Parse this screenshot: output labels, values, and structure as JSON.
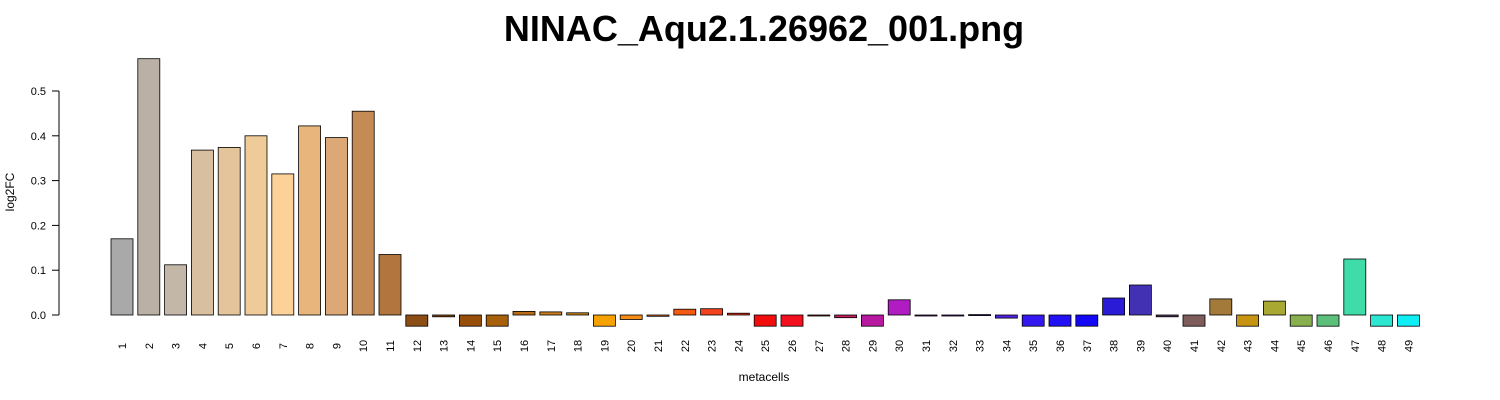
{
  "chart_data": {
    "type": "bar",
    "title": "NINAC_Aqu2.1.26962_001.png",
    "xlabel": "metacells",
    "ylabel": "log2FC",
    "ylim": [
      -0.03,
      0.58
    ],
    "yticks": [
      0.0,
      0.1,
      0.2,
      0.3,
      0.4,
      0.5
    ],
    "ytick_labels": [
      "0.0",
      "0.1",
      "0.2",
      "0.3",
      "0.4",
      "0.5"
    ],
    "grid": false,
    "legend": "none",
    "categories": [
      "1",
      "2",
      "3",
      "4",
      "5",
      "6",
      "7",
      "8",
      "9",
      "10",
      "11",
      "12",
      "13",
      "14",
      "15",
      "16",
      "17",
      "18",
      "19",
      "20",
      "21",
      "22",
      "23",
      "24",
      "25",
      "26",
      "27",
      "28",
      "29",
      "30",
      "31",
      "32",
      "33",
      "34",
      "35",
      "36",
      "37",
      "38",
      "39",
      "40",
      "41",
      "42",
      "43",
      "44",
      "45",
      "46",
      "47",
      "48",
      "49"
    ],
    "values": [
      0.17,
      0.572,
      0.112,
      0.368,
      0.374,
      0.4,
      0.315,
      0.422,
      0.396,
      0.455,
      0.135,
      -0.025,
      -0.004,
      -0.025,
      -0.025,
      0.008,
      0.007,
      0.005,
      -0.025,
      -0.01,
      -0.003,
      0.013,
      0.014,
      0.004,
      -0.025,
      -0.025,
      -0.002,
      -0.006,
      -0.025,
      0.034,
      -0.001,
      0.0,
      0.001,
      -0.007,
      -0.025,
      -0.025,
      -0.025,
      0.038,
      0.067,
      -0.004,
      -0.025,
      0.036,
      -0.025,
      0.031,
      -0.025,
      -0.025,
      0.125,
      -0.025,
      -0.025
    ],
    "colors": [
      "#a9a9a9",
      "#bab0a5",
      "#c3b7a8",
      "#d8bfa0",
      "#e4c49a",
      "#efcb99",
      "#fdd298",
      "#e8b67c",
      "#dba876",
      "#c48b55",
      "#b2753d",
      "#8c4d15",
      "#8f4f13",
      "#964e09",
      "#a8600a",
      "#b86d16",
      "#c87f1f",
      "#cf8514",
      "#f5a200",
      "#f58c18",
      "#f26b12",
      "#f55a12",
      "#f2421c",
      "#e82f19",
      "#f20d0d",
      "#f2101e",
      "#d11018",
      "#c41c5a",
      "#b8189f",
      "#b01bc2",
      "#8e1fcf",
      "#7a1fd6",
      "#6a20e0",
      "#5021e3",
      "#3518f0",
      "#2211f2",
      "#1308f5",
      "#2a1bd6",
      "#4232b3",
      "#534060",
      "#7e5c5c",
      "#a47a3a",
      "#c79411",
      "#a8a832",
      "#88b04f",
      "#5cc07a",
      "#3fdcaa",
      "#2be6d0",
      "#10eef5"
    ]
  }
}
